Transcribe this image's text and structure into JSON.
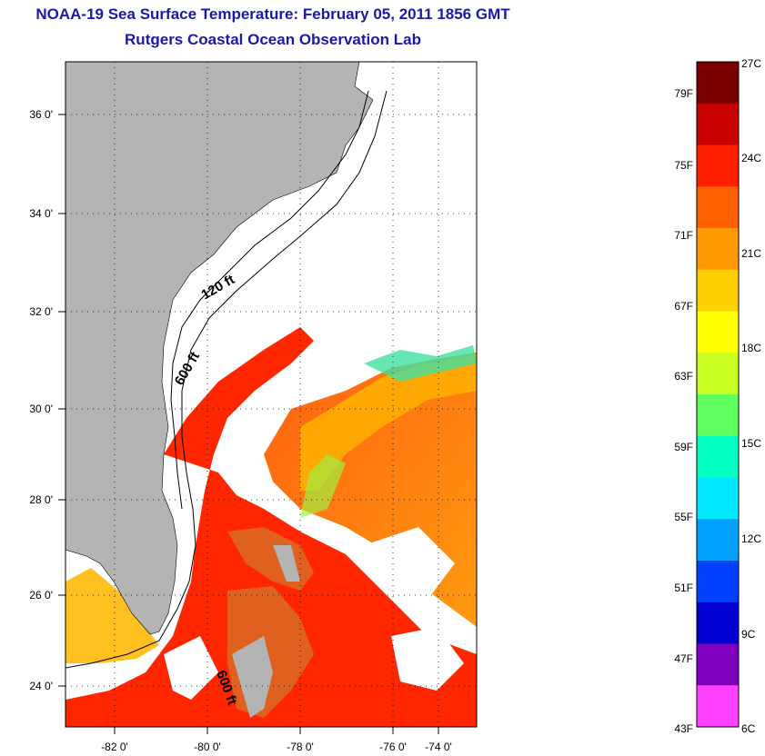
{
  "header": {
    "title": "NOAA-19 Sea Surface Temperature:  February 05, 2011 1856 GMT",
    "subtitle": "Rutgers Coastal Ocean Observation Lab"
  },
  "map": {
    "lat_labels": [
      "36 0'",
      "34 0'",
      "32 0'",
      "30 0'",
      "28 0'",
      "26 0'",
      "24 0'"
    ],
    "lon_labels": [
      "-82 0'",
      "-80 0'",
      "-78 0'",
      "-76 0'",
      "-74 0'"
    ],
    "contour_labels": [
      "120 ft",
      "600 ft",
      "600 ft"
    ],
    "extent": {
      "lon": [
        -83.0,
        -72.8
      ],
      "lat": [
        23.0,
        37.0
      ]
    },
    "land_color": "#b4b4b4",
    "cloud_color": "#ffffff"
  },
  "colorbar": {
    "fahrenheit_labels": [
      "79F",
      "75F",
      "71F",
      "67F",
      "63F",
      "59F",
      "55F",
      "51F",
      "47F",
      "43F"
    ],
    "celsius_labels": [
      "27C",
      "24C",
      "21C",
      "18C",
      "15C",
      "12C",
      "9C",
      "6C"
    ],
    "colors": [
      "#7a0000",
      "#c80000",
      "#ff2000",
      "#ff6000",
      "#ff9a00",
      "#ffd000",
      "#ffff00",
      "#c8ff20",
      "#60ff60",
      "#00ffc0",
      "#00e8ff",
      "#00a0ff",
      "#0040ff",
      "#0000d0",
      "#8000c0",
      "#ff40ff"
    ]
  }
}
